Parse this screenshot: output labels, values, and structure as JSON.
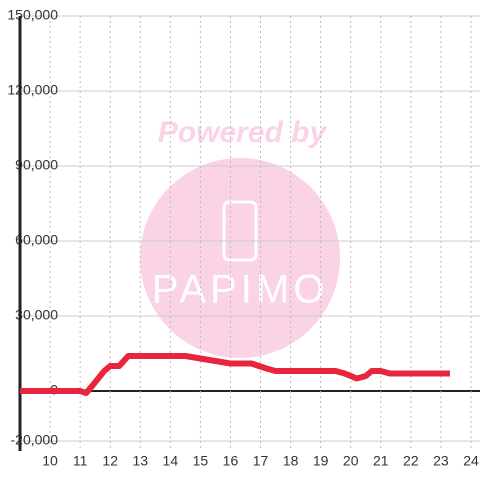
{
  "chart_data": {
    "type": "line",
    "watermark": {
      "top": "Powered by",
      "logo": "PAPIMO"
    },
    "x": [
      9,
      11,
      11.2,
      11.4,
      11.8,
      12,
      12.3,
      12.6,
      14.5,
      15,
      15.5,
      16,
      16.7,
      17.2,
      17.5,
      19.5,
      19.8,
      20,
      20.2,
      20.5,
      20.7,
      21,
      21.3,
      23.3
    ],
    "series": [
      {
        "color": "#e8253c",
        "values": [
          0,
          0,
          -800,
          2000,
          8000,
          10000,
          10000,
          14000,
          14000,
          13000,
          12000,
          11000,
          11000,
          9000,
          8000,
          8000,
          7000,
          6000,
          5000,
          6000,
          8000,
          8000,
          7000,
          7000
        ]
      }
    ],
    "xlim": [
      9,
      24.3
    ],
    "ylim": [
      -24000,
      150000
    ],
    "xticks": [
      10,
      11,
      12,
      13,
      14,
      15,
      16,
      17,
      18,
      19,
      20,
      21,
      22,
      23,
      24
    ],
    "yticks": [
      {
        "value": 150000,
        "label": "150,000"
      },
      {
        "value": 120000,
        "label": "120,000"
      },
      {
        "value": 90000,
        "label": "90,000"
      },
      {
        "value": 60000,
        "label": "60,000"
      },
      {
        "value": 30000,
        "label": "30,000"
      },
      0,
      {
        "value": -20000,
        "label": "-20,000"
      }
    ],
    "grid": true
  }
}
